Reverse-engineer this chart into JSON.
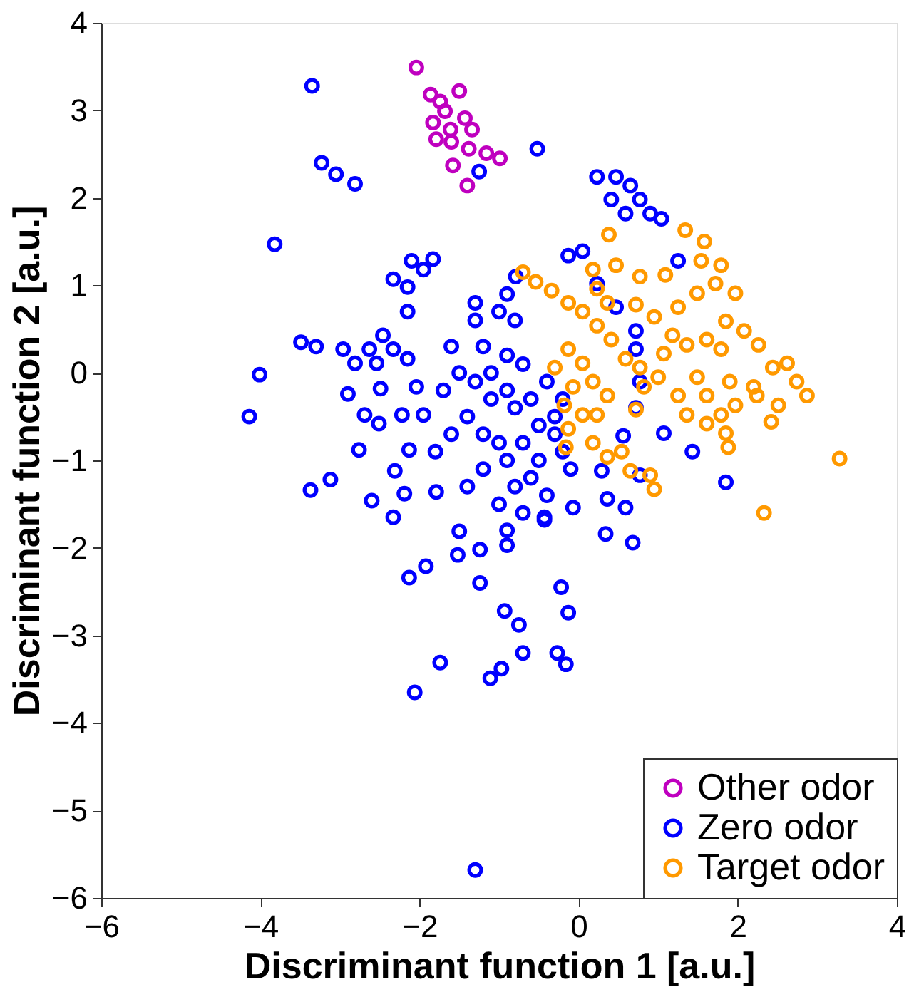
{
  "chart_data": {
    "type": "scatter",
    "xlabel": "Discriminant function 1 [a.u.]",
    "ylabel": "Discriminant function 2 [a.u.]",
    "xlim": [
      -6,
      4
    ],
    "ylim": [
      -6,
      4
    ],
    "xticks": [
      -6,
      -4,
      -2,
      0,
      2,
      4
    ],
    "yticks": [
      -6,
      -5,
      -4,
      -3,
      -2,
      -1,
      0,
      1,
      2,
      3,
      4
    ],
    "grid": false,
    "legend": "bottom right",
    "marker": "circle",
    "series": [
      {
        "name": "Other odor",
        "color": "#bf00bf",
        "x": [
          -2.04,
          -1.86,
          -1.5,
          -1.68,
          -1.43,
          -1.83,
          -1.34,
          -1.79,
          -1.6,
          -1.38,
          -1.16,
          -0.99,
          -1.58,
          -1.4,
          -1.74,
          -1.61
        ],
        "values": [
          3.49,
          3.18,
          3.22,
          2.99,
          2.91,
          2.86,
          2.78,
          2.67,
          2.64,
          2.56,
          2.51,
          2.45,
          2.37,
          2.14,
          3.1,
          2.78
        ]
      },
      {
        "name": "Zero odor",
        "color": "#0000ff",
        "x": [
          -3.35,
          -3.23,
          -3.05,
          -2.81,
          -3.82,
          -0.52,
          -1.25,
          -1.3,
          -2.06,
          -2.33,
          -2.15,
          -2.1,
          -1.83,
          -1.95,
          -3.49,
          -3.3,
          -2.96,
          -2.81,
          -2.54,
          -2.63,
          -2.46,
          -2.15,
          -2.33,
          -2.15,
          -2.9,
          -2.49,
          -2.69,
          -2.51,
          -2.22,
          -1.95,
          -2.04,
          -2.76,
          -2.13,
          -2.31,
          -3.12,
          -3.37,
          -2.6,
          -2.19,
          -2.33,
          -1.79,
          -1.5,
          -1.52,
          -1.92,
          -2.13,
          -1.24,
          -0.93,
          -0.75,
          -1.24,
          -0.9,
          -1.74,
          -0.7,
          -0.97,
          -1.11,
          -0.27,
          -0.16,
          -0.22,
          -0.13,
          -0.07,
          -0.43,
          -4.14,
          -4.01,
          -1.3,
          -1.0,
          -0.8,
          -1.2,
          -0.9,
          -1.5,
          -1.3,
          -1.1,
          -0.8,
          -1.4,
          -1.6,
          -1.2,
          -1.0,
          -0.7,
          -0.5,
          -0.3,
          -0.6,
          -0.9,
          -1.2,
          -0.8,
          -0.6,
          -1.0,
          -0.7,
          -1.4,
          -0.5,
          -0.2,
          -0.2,
          -1.7,
          -1.6,
          -0.9,
          -0.4,
          -1.1,
          -0.7,
          -1.8,
          -0.9,
          -0.4,
          -0.1,
          -0.3,
          -1.3,
          -0.9,
          -0.79,
          1.25,
          1.85,
          0.23,
          0.47,
          0.65,
          0.77,
          0.9,
          1.04,
          0.41,
          0.59,
          -0.13,
          0.05,
          0.23,
          0.47,
          0.72,
          0.72,
          0.77,
          0.72,
          1.07,
          1.43,
          0.56,
          0.36,
          0.59,
          0.77,
          0.29,
          -0.43,
          0.34,
          0.68
        ],
        "values": [
          3.28,
          2.4,
          2.27,
          2.16,
          1.47,
          2.56,
          2.3,
          -5.68,
          -3.65,
          1.07,
          0.98,
          1.28,
          1.3,
          1.18,
          0.35,
          0.3,
          0.27,
          0.11,
          0.11,
          0.27,
          0.43,
          0.7,
          0.27,
          0.16,
          -0.24,
          -0.18,
          -0.48,
          -0.58,
          -0.48,
          -0.48,
          -0.16,
          -0.88,
          -0.88,
          -1.12,
          -1.22,
          -1.34,
          -1.46,
          -1.38,
          -1.65,
          -1.36,
          -1.81,
          -2.08,
          -2.21,
          -2.34,
          -2.4,
          -2.72,
          -2.88,
          -2.02,
          -1.97,
          -3.31,
          -3.2,
          -3.38,
          -3.49,
          -3.2,
          -3.33,
          -2.45,
          -2.74,
          -1.54,
          -1.68,
          -0.5,
          -0.02,
          0.6,
          0.7,
          0.6,
          0.3,
          0.2,
          0.0,
          -0.1,
          -0.3,
          -0.4,
          -0.5,
          -0.7,
          -0.7,
          -0.8,
          -0.8,
          -0.6,
          -0.5,
          -0.3,
          -1.0,
          -1.1,
          -1.3,
          -1.2,
          -1.5,
          -1.6,
          -1.3,
          -1.0,
          -0.9,
          -0.3,
          -0.2,
          0.3,
          -0.2,
          -0.1,
          0.0,
          0.1,
          -0.9,
          -1.8,
          -1.4,
          -1.1,
          -0.7,
          0.8,
          0.9,
          1.1,
          1.28,
          -1.25,
          2.24,
          2.24,
          2.14,
          1.98,
          1.82,
          1.76,
          1.98,
          1.82,
          1.34,
          1.39,
          1.02,
          0.75,
          0.48,
          0.27,
          -0.1,
          -0.4,
          -0.69,
          -0.9,
          -0.72,
          -1.44,
          -1.54,
          -1.17,
          -1.12,
          -1.65,
          -1.84,
          -1.94
        ]
      },
      {
        "name": "Target odor",
        "color": "#ff9900",
        "x": [
          0.38,
          1.34,
          1.58,
          0.77,
          1.09,
          0.47,
          -0.7,
          -0.54,
          -0.34,
          -0.13,
          0.05,
          0.23,
          0.41,
          0.59,
          0.77,
          0.18,
          0.72,
          0.95,
          1.25,
          1.49,
          1.72,
          1.97,
          1.54,
          1.79,
          1.85,
          2.08,
          2.26,
          1.61,
          1.36,
          1.18,
          1.79,
          1.9,
          2.2,
          2.44,
          2.62,
          2.74,
          2.87,
          2.51,
          2.42,
          2.24,
          1.97,
          1.79,
          1.85,
          1.88,
          1.61,
          1.36,
          1.25,
          1.0,
          0.82,
          1.07,
          1.49,
          1.61,
          3.28,
          2.33,
          -0.13,
          -0.3,
          0.05,
          -0.07,
          0.18,
          -0.18,
          0.36,
          0.05,
          -0.13,
          -0.16,
          0.18,
          0.36,
          0.54,
          0.65,
          0.9,
          0.95,
          0.23,
          0.72,
          0.23,
          0.36
        ],
        "values": [
          1.58,
          1.63,
          1.5,
          1.1,
          1.12,
          1.23,
          1.15,
          1.04,
          0.94,
          0.8,
          0.7,
          0.54,
          0.38,
          0.16,
          0.06,
          1.18,
          0.78,
          0.64,
          0.75,
          0.91,
          1.02,
          0.91,
          1.28,
          1.23,
          0.59,
          0.48,
          0.32,
          0.38,
          0.32,
          0.43,
          0.27,
          -0.1,
          -0.16,
          0.06,
          0.11,
          -0.1,
          -0.26,
          -0.37,
          -0.56,
          -0.26,
          -0.37,
          -0.48,
          -0.69,
          -0.85,
          -0.58,
          -0.48,
          -0.26,
          -0.05,
          -0.16,
          0.22,
          -0.05,
          -0.26,
          -0.98,
          -1.6,
          0.27,
          0.06,
          0.11,
          -0.16,
          -0.1,
          -0.37,
          -0.26,
          -0.48,
          -0.64,
          -0.85,
          -0.8,
          -0.96,
          -0.9,
          -1.12,
          -1.17,
          -1.33,
          -0.48,
          -0.42,
          0.96,
          0.8
        ]
      }
    ]
  }
}
